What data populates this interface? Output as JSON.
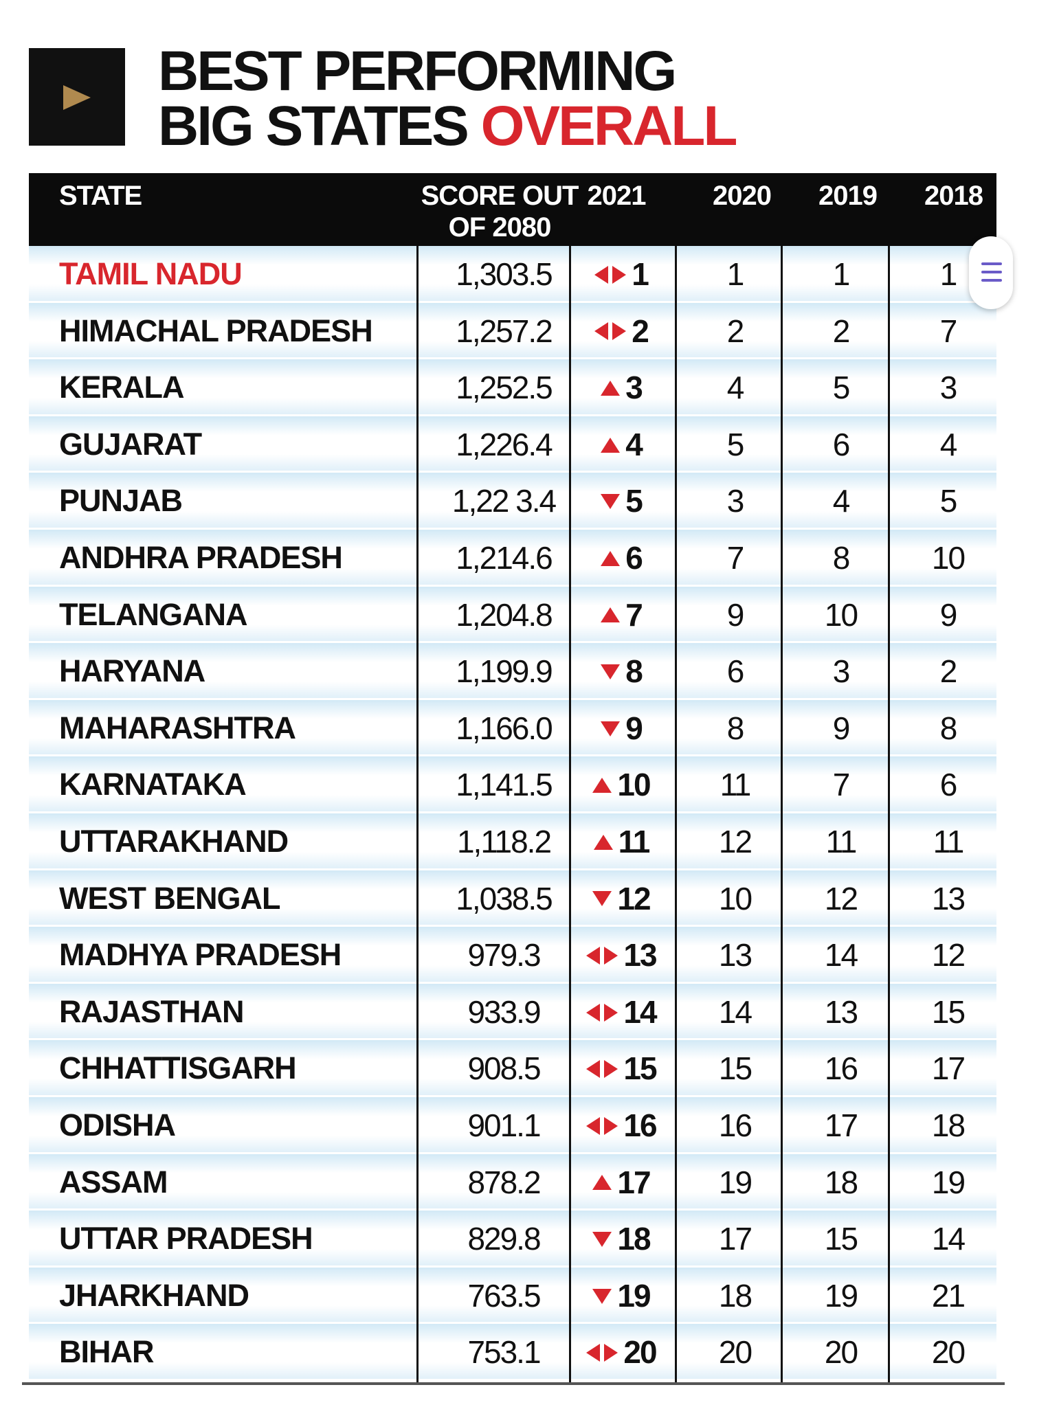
{
  "header": {
    "title_line1": "BEST PERFORMING",
    "title_line2_part1": "BIG STATES ",
    "title_line2_accent": "OVERALL",
    "accent_color": "#d8262d"
  },
  "table": {
    "columns": {
      "state": "STATE",
      "score_line1": "SCORE OUT",
      "score_line2": "OF 2080",
      "y2021": "2021",
      "y2020": "2020",
      "y2019": "2019",
      "y2018": "2018"
    },
    "rows": [
      {
        "state": "TAMIL NADU",
        "score": "1,303.5",
        "trend": "same",
        "r2021": "1",
        "r2020": "1",
        "r2019": "1",
        "r2018": "1"
      },
      {
        "state": "HIMACHAL PRADESH",
        "score": "1,257.2",
        "trend": "same",
        "r2021": "2",
        "r2020": "2",
        "r2019": "2",
        "r2018": "7"
      },
      {
        "state": "KERALA",
        "score": "1,252.5",
        "trend": "up",
        "r2021": "3",
        "r2020": "4",
        "r2019": "5",
        "r2018": "3"
      },
      {
        "state": "GUJARAT",
        "score": "1,226.4",
        "trend": "up",
        "r2021": "4",
        "r2020": "5",
        "r2019": "6",
        "r2018": "4"
      },
      {
        "state": "PUNJAB",
        "score": "1,22 3.4",
        "trend": "down",
        "r2021": "5",
        "r2020": "3",
        "r2019": "4",
        "r2018": "5"
      },
      {
        "state": "ANDHRA PRADESH",
        "score": "1,214.6",
        "trend": "up",
        "r2021": "6",
        "r2020": "7",
        "r2019": "8",
        "r2018": "10"
      },
      {
        "state": "TELANGANA",
        "score": "1,204.8",
        "trend": "up",
        "r2021": "7",
        "r2020": "9",
        "r2019": "10",
        "r2018": "9"
      },
      {
        "state": "HARYANA",
        "score": "1,199.9",
        "trend": "down",
        "r2021": "8",
        "r2020": "6",
        "r2019": "3",
        "r2018": "2"
      },
      {
        "state": "MAHARASHTRA",
        "score": "1,166.0",
        "trend": "down",
        "r2021": "9",
        "r2020": "8",
        "r2019": "9",
        "r2018": "8"
      },
      {
        "state": "KARNATAKA",
        "score": "1,141.5",
        "trend": "up",
        "r2021": "10",
        "r2020": "11",
        "r2019": "7",
        "r2018": "6"
      },
      {
        "state": "UTTARAKHAND",
        "score": "1,118.2",
        "trend": "up",
        "r2021": "11",
        "r2020": "12",
        "r2019": "11",
        "r2018": "11"
      },
      {
        "state": "WEST BENGAL",
        "score": "1,038.5",
        "trend": "down",
        "r2021": "12",
        "r2020": "10",
        "r2019": "12",
        "r2018": "13"
      },
      {
        "state": "MADHYA PRADESH",
        "score": "979.3",
        "trend": "same",
        "r2021": "13",
        "r2020": "13",
        "r2019": "14",
        "r2018": "12"
      },
      {
        "state": "RAJASTHAN",
        "score": "933.9",
        "trend": "same",
        "r2021": "14",
        "r2020": "14",
        "r2019": "13",
        "r2018": "15"
      },
      {
        "state": "CHHATTISGARH",
        "score": "908.5",
        "trend": "same",
        "r2021": "15",
        "r2020": "15",
        "r2019": "16",
        "r2018": "17"
      },
      {
        "state": "ODISHA",
        "score": "901.1",
        "trend": "same",
        "r2021": "16",
        "r2020": "16",
        "r2019": "17",
        "r2018": "18"
      },
      {
        "state": "ASSAM",
        "score": "878.2",
        "trend": "up",
        "r2021": "17",
        "r2020": "19",
        "r2019": "18",
        "r2018": "19"
      },
      {
        "state": "UTTAR PRADESH",
        "score": "829.8",
        "trend": "down",
        "r2021": "18",
        "r2020": "17",
        "r2019": "15",
        "r2018": "14"
      },
      {
        "state": "JHARKHAND",
        "score": "763.5",
        "trend": "down",
        "r2021": "19",
        "r2020": "18",
        "r2019": "19",
        "r2018": "21"
      },
      {
        "state": "BIHAR",
        "score": "753.1",
        "trend": "same",
        "r2021": "20",
        "r2020": "20",
        "r2019": "20",
        "r2018": "20"
      }
    ]
  },
  "icons": {
    "badge": "play-icon",
    "fab": "menu-icon",
    "trend_up": "triangle-up-icon",
    "trend_down": "triangle-down-icon",
    "trend_same": "left-right-arrows-icon"
  }
}
